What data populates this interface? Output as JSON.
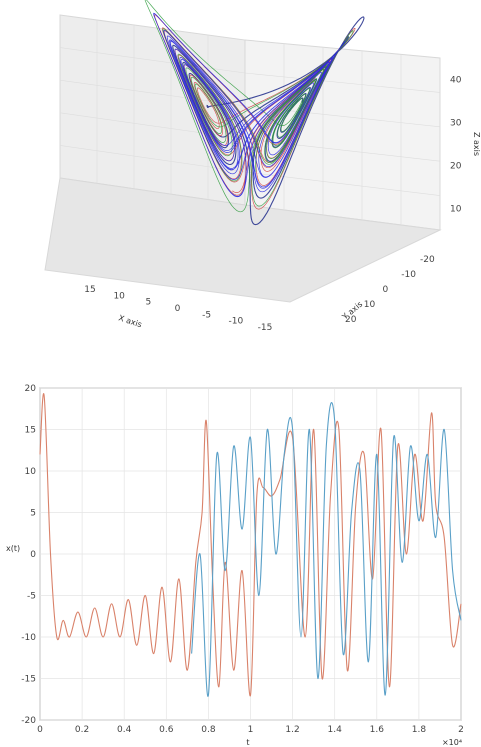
{
  "chart_data": [
    {
      "type": "line3d",
      "title": "",
      "xlabel": "X axis",
      "ylabel": "Y axis",
      "zlabel": "Z axis",
      "x_ticks": [
        "15",
        "10",
        "5",
        "0",
        "-5",
        "-10",
        "-15"
      ],
      "y_ticks": [
        "-20",
        "-10",
        "0",
        "10",
        "20"
      ],
      "z_ticks": [
        "10",
        "20",
        "30",
        "40"
      ],
      "xlim": [
        -15,
        15
      ],
      "ylim": [
        -20,
        20
      ],
      "zlim": [
        5,
        45
      ],
      "grid": true,
      "series_colors": [
        "#1f2a8a",
        "#d04040",
        "#2a9a3a",
        "#2020e0"
      ]
    },
    {
      "type": "line",
      "title": "",
      "xlabel": "t",
      "ylabel": "x(t)",
      "x_exponent_label": "×10⁴",
      "x_ticks": [
        "0",
        "0.2",
        "0.4",
        "0.6",
        "0.8",
        "1",
        "1.2",
        "1.4",
        "1.6",
        "1.8",
        "2"
      ],
      "y_ticks": [
        "20",
        "15",
        "10",
        "5",
        "0",
        "-5",
        "-10",
        "-15",
        "-20"
      ],
      "xlim": [
        0,
        2
      ],
      "ylim": [
        -20,
        20
      ],
      "grid": true,
      "series": [
        {
          "color": "#d9826a",
          "x": [
            0,
            0.02,
            0.05,
            0.08,
            0.11,
            0.14,
            0.18,
            0.22,
            0.26,
            0.3,
            0.34,
            0.38,
            0.42,
            0.46,
            0.5,
            0.54,
            0.58,
            0.62,
            0.66,
            0.7,
            0.74,
            0.77,
            0.79,
            0.82,
            0.85,
            0.88,
            0.92,
            0.96,
            1.0,
            1.03,
            1.06,
            1.1,
            1.14,
            1.2,
            1.26,
            1.3,
            1.34,
            1.38,
            1.42,
            1.46,
            1.5,
            1.54,
            1.58,
            1.62,
            1.66,
            1.7,
            1.74,
            1.78,
            1.82,
            1.86,
            1.88,
            1.92,
            1.96,
            2.0
          ],
          "y": [
            12,
            19,
            0,
            -10,
            -8,
            -10,
            -7,
            -10,
            -6.5,
            -10,
            -6,
            -10,
            -5.5,
            -11,
            -5,
            -12,
            -4,
            -13,
            -3,
            -14,
            -1,
            5,
            16,
            -3,
            -16,
            -1,
            -14,
            -2,
            -17,
            7,
            8,
            7,
            9,
            14,
            -10,
            15,
            -15,
            7,
            15,
            -14,
            6,
            12,
            -3,
            15,
            -16,
            13,
            0,
            12,
            4,
            17,
            6,
            2,
            -11,
            -6
          ]
        },
        {
          "color": "#5aa0c8",
          "x": [
            0.72,
            0.76,
            0.8,
            0.84,
            0.88,
            0.92,
            0.96,
            1.0,
            1.04,
            1.08,
            1.12,
            1.16,
            1.2,
            1.24,
            1.28,
            1.32,
            1.36,
            1.4,
            1.44,
            1.48,
            1.52,
            1.56,
            1.6,
            1.64,
            1.68,
            1.72,
            1.76,
            1.8,
            1.84,
            1.88,
            1.92,
            1.96,
            2.0
          ],
          "y": [
            -12,
            0,
            -17,
            12,
            -2,
            13,
            3,
            14,
            -5,
            15,
            0,
            12,
            15,
            -10,
            15,
            -15,
            13,
            16,
            -12,
            5,
            10,
            -13,
            12,
            -17,
            14,
            -1,
            13,
            4,
            12,
            2,
            15,
            -2,
            -8
          ]
        }
      ]
    }
  ]
}
